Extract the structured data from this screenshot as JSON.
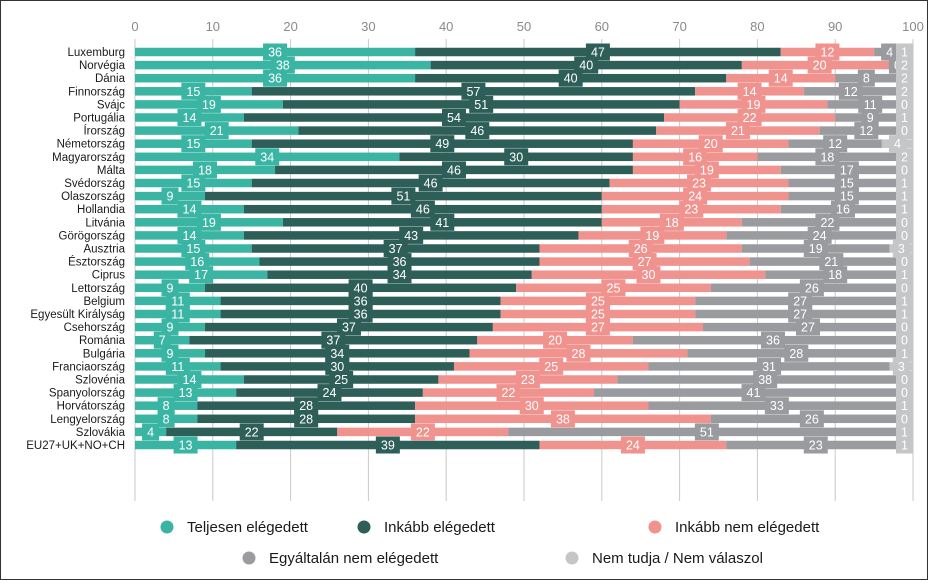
{
  "chart_data": {
    "type": "bar",
    "orientation": "horizontal",
    "stacked": true,
    "title": "",
    "xlabel": "",
    "ylabel": "",
    "xlim": [
      0,
      100
    ],
    "xticks": [
      "0",
      "10",
      "20",
      "30",
      "40",
      "50",
      "60",
      "70",
      "80",
      "90",
      "100"
    ],
    "grid": true,
    "legend_position": "bottom",
    "categories": [
      "Luxemburg",
      "Norvégia",
      "Dánia",
      "Finnország",
      "Svájc",
      "Portugália",
      "Írország",
      "Németország",
      "Magyarország",
      "Málta",
      "Svédország",
      "Olaszország",
      "Hollandia",
      "Litvánia",
      "Görögország",
      "Ausztria",
      "Észtország",
      "Ciprus",
      "Lettország",
      "Belgium",
      "Egyesült Királyság",
      "Csehország",
      "Románia",
      "Bulgária",
      "Franciaország",
      "Szlovénia",
      "Spanyolország",
      "Horvátország",
      "Lengyelország",
      "Szlovákia",
      "EU27+UK+NO+CH"
    ],
    "series": [
      {
        "name": "Teljesen elégedett",
        "color": "#3ab5a4",
        "values": [
          36,
          38,
          36,
          15,
          19,
          14,
          21,
          15,
          34,
          18,
          15,
          9,
          14,
          19,
          14,
          15,
          16,
          17,
          9,
          11,
          11,
          9,
          7,
          9,
          11,
          14,
          13,
          8,
          8,
          4,
          13
        ]
      },
      {
        "name": "Inkább elégedett",
        "color": "#2e5e58",
        "values": [
          47,
          40,
          40,
          57,
          51,
          54,
          46,
          49,
          30,
          46,
          46,
          51,
          46,
          41,
          43,
          37,
          36,
          34,
          40,
          36,
          36,
          37,
          37,
          34,
          30,
          25,
          24,
          28,
          28,
          22,
          39
        ]
      },
      {
        "name": "Inkább nem elégedett",
        "color": "#f0928e",
        "values": [
          12,
          20,
          14,
          14,
          19,
          22,
          21,
          20,
          16,
          19,
          23,
          24,
          23,
          18,
          19,
          26,
          27,
          30,
          25,
          25,
          25,
          27,
          20,
          28,
          25,
          23,
          22,
          30,
          38,
          22,
          24
        ]
      },
      {
        "name": "Egyáltalán nem elégedett",
        "color": "#999b9e",
        "values": [
          4,
          0,
          8,
          12,
          11,
          9,
          12,
          12,
          18,
          17,
          15,
          15,
          16,
          22,
          24,
          19,
          21,
          18,
          26,
          27,
          27,
          27,
          36,
          28,
          31,
          38,
          41,
          33,
          26,
          51,
          23
        ]
      },
      {
        "name": "Nem tudja / Nem válaszol",
        "color": "#c4c6c8",
        "values": [
          1,
          2,
          2,
          2,
          0,
          1,
          0,
          4,
          2,
          0,
          1,
          1,
          1,
          0,
          0,
          3,
          0,
          1,
          0,
          1,
          1,
          0,
          0,
          1,
          3,
          0,
          0,
          1,
          0,
          1,
          1
        ]
      }
    ]
  }
}
